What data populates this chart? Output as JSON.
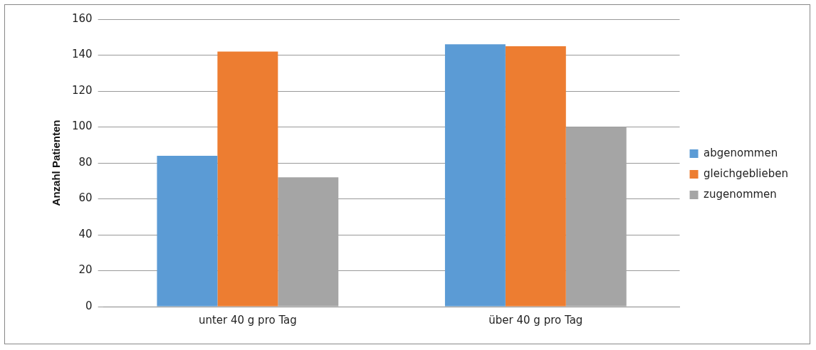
{
  "chart_data": {
    "type": "bar",
    "ylabel": "Anzahl Patienten",
    "categories": [
      "unter 40 g pro Tag",
      "über 40 g pro Tag"
    ],
    "series": [
      {
        "name": "abgenommen",
        "color": "#5b9bd5",
        "values": [
          84,
          146
        ]
      },
      {
        "name": "gleichgeblieben",
        "color": "#ed7d31",
        "values": [
          142,
          145
        ]
      },
      {
        "name": "zugenommen",
        "color": "#a5a5a5",
        "values": [
          72,
          100
        ]
      }
    ],
    "ylim": [
      0,
      160
    ],
    "yticks": [
      0,
      20,
      40,
      60,
      80,
      100,
      120,
      140,
      160
    ],
    "grid": "y",
    "legend": "right"
  }
}
